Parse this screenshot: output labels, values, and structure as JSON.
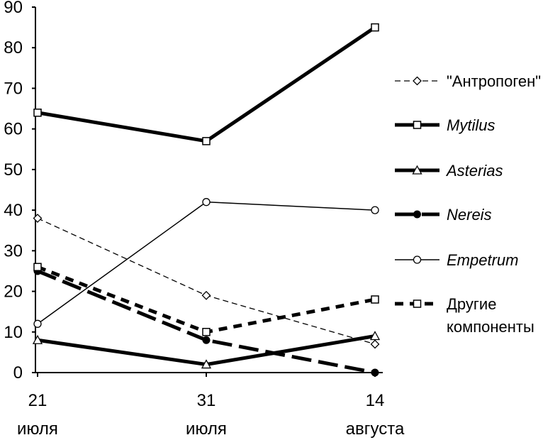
{
  "chart_data": {
    "type": "line",
    "title": "",
    "xlabel": "",
    "ylabel": "",
    "ylim": [
      0,
      90
    ],
    "yticks": [
      0,
      10,
      20,
      30,
      40,
      50,
      60,
      70,
      80,
      90
    ],
    "grid": false,
    "legend_position": "right",
    "categories": [
      {
        "day": "21",
        "month": "июля"
      },
      {
        "day": "31",
        "month": "июля"
      },
      {
        "day": "14",
        "month": "августа"
      }
    ],
    "series": [
      {
        "name": "\"Антропоген\"",
        "italic": false,
        "values": [
          38,
          19,
          7
        ],
        "color": "#000000",
        "line": "thin-dash",
        "marker": "diamond-open"
      },
      {
        "name": "Mytilus",
        "italic": true,
        "values": [
          64,
          57,
          85
        ],
        "color": "#000000",
        "line": "thick-solid",
        "marker": "square-open"
      },
      {
        "name": "Asterias",
        "italic": true,
        "values": [
          8,
          2,
          9
        ],
        "color": "#000000",
        "line": "thick-solid",
        "marker": "triangle-open"
      },
      {
        "name": "Nereis",
        "italic": true,
        "values": [
          25,
          8,
          0
        ],
        "color": "#000000",
        "line": "thick-longdash",
        "marker": "circle-filled"
      },
      {
        "name": "Empetrum",
        "italic": true,
        "values": [
          12,
          42,
          40
        ],
        "color": "#000000",
        "line": "thin-solid",
        "marker": "circle-open"
      },
      {
        "name": "Другие компоненты",
        "name_lines": [
          "Другие",
          "компоненты"
        ],
        "italic": false,
        "values": [
          26,
          10,
          18
        ],
        "color": "#000000",
        "line": "thick-shortdash",
        "marker": "square-open"
      }
    ]
  }
}
